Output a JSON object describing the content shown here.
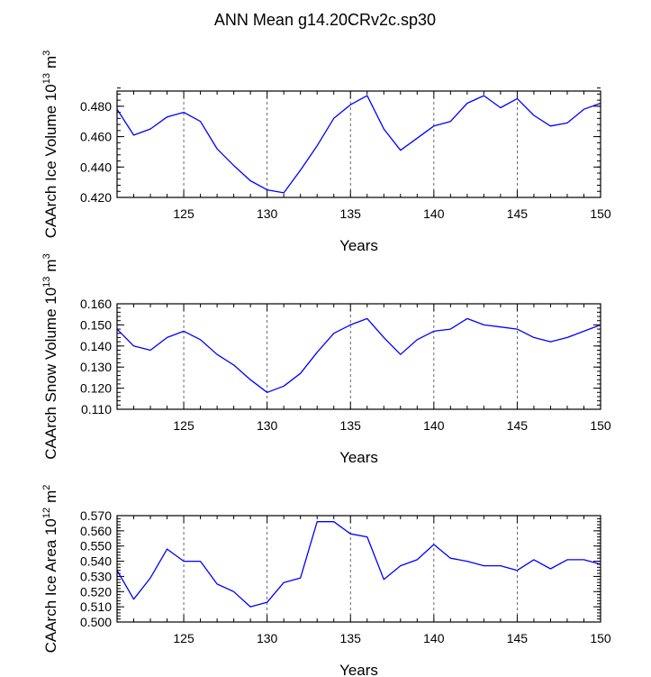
{
  "figure": {
    "title": "ANN Mean g14.20CRv2c.sp30"
  },
  "chart_data": [
    {
      "type": "line",
      "ylabel": "CAArch Ice Volume 10^13 m^3",
      "ylabel_main": "CAArch Ice Volume 10",
      "ylabel_exp": "13",
      "ylabel_unit": "m",
      "ylabel_unit_exp": "3",
      "xlabel": "Years",
      "xlim": [
        121,
        150
      ],
      "ylim": [
        0.42,
        0.49
      ],
      "xticks": [
        125,
        130,
        135,
        140,
        145,
        150
      ],
      "xtick_labels": [
        "125",
        "130",
        "135",
        "140",
        "145",
        "150"
      ],
      "yticks": [
        0.42,
        0.44,
        0.46,
        0.48
      ],
      "ytick_labels": [
        "0.420",
        "0.440",
        "0.460",
        "0.480"
      ],
      "yminor_step": 0.004,
      "grid": "dashed vertical at major x ticks",
      "series": [
        {
          "name": "CAArch Ice Volume",
          "color": "#0000ff",
          "x": [
            121,
            122,
            123,
            124,
            125,
            126,
            127,
            128,
            129,
            130,
            131,
            132,
            133,
            134,
            135,
            136,
            137,
            138,
            139,
            140,
            141,
            142,
            143,
            144,
            145,
            146,
            147,
            148,
            149,
            150
          ],
          "values": [
            0.478,
            0.461,
            0.465,
            0.473,
            0.476,
            0.47,
            0.452,
            0.441,
            0.431,
            0.425,
            0.423,
            0.438,
            0.454,
            0.472,
            0.481,
            0.487,
            0.465,
            0.451,
            0.459,
            0.467,
            0.47,
            0.482,
            0.487,
            0.479,
            0.485,
            0.474,
            0.467,
            0.469,
            0.478,
            0.482
          ]
        }
      ]
    },
    {
      "type": "line",
      "ylabel": "CAArch Snow Volume 10^13 m^3",
      "ylabel_main": "CAArch Snow Volume 10",
      "ylabel_exp": "13",
      "ylabel_unit": "m",
      "ylabel_unit_exp": "3",
      "xlabel": "Years",
      "xlim": [
        121,
        150
      ],
      "ylim": [
        0.11,
        0.16
      ],
      "xticks": [
        125,
        130,
        135,
        140,
        145,
        150
      ],
      "xtick_labels": [
        "125",
        "130",
        "135",
        "140",
        "145",
        "150"
      ],
      "yticks": [
        0.11,
        0.12,
        0.13,
        0.14,
        0.15,
        0.16
      ],
      "ytick_labels": [
        "0.110",
        "0.120",
        "0.130",
        "0.140",
        "0.150",
        "0.160"
      ],
      "yminor_step": 0.002,
      "grid": "dashed vertical at major x ticks",
      "series": [
        {
          "name": "CAArch Snow Volume",
          "color": "#0000ff",
          "x": [
            121,
            122,
            123,
            124,
            125,
            126,
            127,
            128,
            129,
            130,
            131,
            132,
            133,
            134,
            135,
            136,
            137,
            138,
            139,
            140,
            141,
            142,
            143,
            144,
            145,
            146,
            147,
            148,
            149,
            150
          ],
          "values": [
            0.148,
            0.14,
            0.138,
            0.144,
            0.147,
            0.143,
            0.136,
            0.131,
            0.124,
            0.118,
            0.121,
            0.127,
            0.137,
            0.146,
            0.15,
            0.153,
            0.144,
            0.136,
            0.143,
            0.147,
            0.148,
            0.153,
            0.15,
            0.149,
            0.148,
            0.144,
            0.142,
            0.144,
            0.147,
            0.15
          ]
        }
      ]
    },
    {
      "type": "line",
      "ylabel": "CAArch Ice Area 10^12 m^2",
      "ylabel_main": "CAArch Ice Area 10",
      "ylabel_exp": "12",
      "ylabel_unit": "m",
      "ylabel_unit_exp": "2",
      "xlabel": "Years",
      "xlim": [
        121,
        150
      ],
      "ylim": [
        0.5,
        0.57
      ],
      "xticks": [
        125,
        130,
        135,
        140,
        145,
        150
      ],
      "xtick_labels": [
        "125",
        "130",
        "135",
        "140",
        "145",
        "150"
      ],
      "yticks": [
        0.5,
        0.51,
        0.52,
        0.53,
        0.54,
        0.55,
        0.56,
        0.57
      ],
      "ytick_labels": [
        "0.500",
        "0.510",
        "0.520",
        "0.530",
        "0.540",
        "0.550",
        "0.560",
        "0.570"
      ],
      "yminor_step": 0.002,
      "grid": "dashed vertical at major x ticks",
      "series": [
        {
          "name": "CAArch Ice Area",
          "color": "#0000ff",
          "x": [
            121,
            122,
            123,
            124,
            125,
            126,
            127,
            128,
            129,
            130,
            131,
            132,
            133,
            134,
            135,
            136,
            137,
            138,
            139,
            140,
            141,
            142,
            143,
            144,
            145,
            146,
            147,
            148,
            149,
            150
          ],
          "values": [
            0.534,
            0.515,
            0.529,
            0.548,
            0.54,
            0.54,
            0.525,
            0.52,
            0.51,
            0.513,
            0.526,
            0.529,
            0.566,
            0.566,
            0.558,
            0.556,
            0.528,
            0.537,
            0.541,
            0.551,
            0.542,
            0.54,
            0.537,
            0.537,
            0.534,
            0.541,
            0.535,
            0.541,
            0.541,
            0.538
          ]
        }
      ]
    }
  ]
}
